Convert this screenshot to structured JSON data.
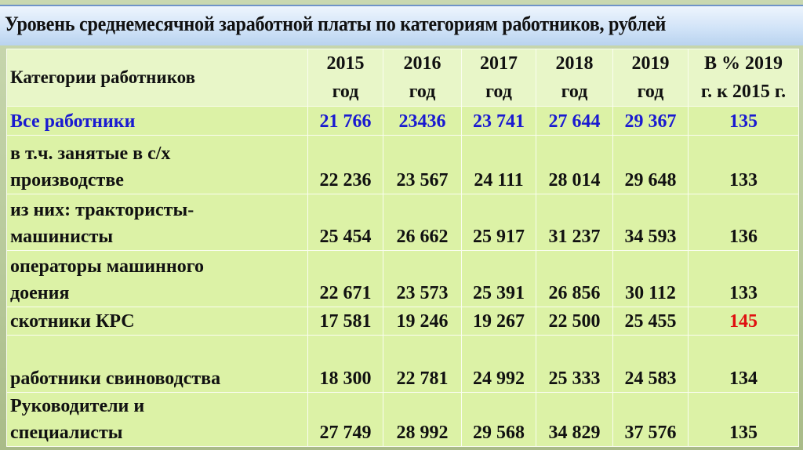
{
  "title": "Уровень среднемесячной заработной платы по категориям работников, рублей",
  "table": {
    "headers": [
      "Категории работников",
      "2015 год",
      "2016 год",
      "2017 год",
      "2018 год",
      "2019 год",
      "В % 2019 г. к 2015 г."
    ],
    "header_lines": [
      [
        "Категории работников"
      ],
      [
        "2015",
        "год"
      ],
      [
        "2016",
        "год"
      ],
      [
        "2017",
        "год"
      ],
      [
        "2018",
        "год"
      ],
      [
        "2019",
        "год"
      ],
      [
        "В % 2019",
        "г. к 2015 г."
      ]
    ],
    "rows": [
      {
        "category": [
          "Все работники"
        ],
        "values": [
          "21 766",
          "23436",
          "23 741",
          "27 644",
          "29 367",
          "135"
        ]
      },
      {
        "category": [
          "в т.ч. занятые в с/х",
          "производстве"
        ],
        "values": [
          "22 236",
          "23 567",
          "24 111",
          "28 014",
          "29 648",
          "133"
        ]
      },
      {
        "category": [
          "из них: трактористы-",
          "машинисты"
        ],
        "values": [
          "25 454",
          "26 662",
          "25 917",
          "31 237",
          "34 593",
          "136"
        ]
      },
      {
        "category": [
          "операторы машинного",
          "доения"
        ],
        "values": [
          "22 671",
          "23 573",
          "25 391",
          "26 856",
          "30 112",
          "133"
        ]
      },
      {
        "category": [
          "скотники КРС"
        ],
        "values": [
          "17 581",
          "19 246",
          "19 267",
          "22 500",
          "25 455",
          "145"
        ]
      },
      {
        "category": [
          "работники свиноводства"
        ],
        "values": [
          "18 300",
          "22 781",
          "24 992",
          "25 333",
          "24 583",
          "134"
        ]
      },
      {
        "category": [
          "Руководители и",
          "специалисты"
        ],
        "values": [
          "27 749",
          "28 992",
          "29 568",
          "34 829",
          "37 576",
          "135"
        ]
      }
    ]
  },
  "colors": {
    "highlight_row": "#1a1ad0",
    "highlight_value": "#e01010"
  }
}
